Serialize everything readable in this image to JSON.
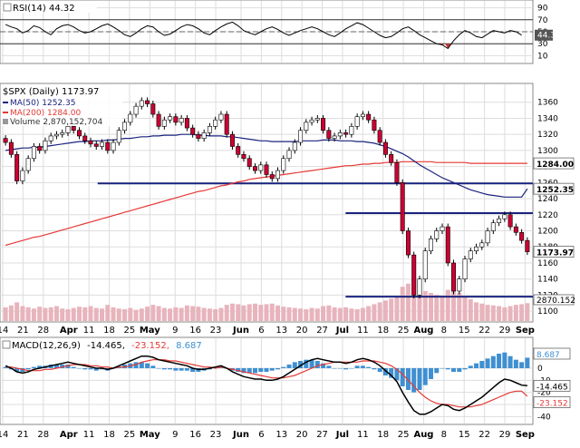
{
  "chart_data": {
    "type": "line",
    "symbol": "$SPX",
    "colors": {
      "up": "#ffffff",
      "down": "#cc0033",
      "ma50": "#1a237e",
      "ma200": "#e53935",
      "volume": "#e8b4bc",
      "macd": "#000000",
      "signal": "#e53935",
      "hist": "#3f8fd1",
      "hline": "#1a237e",
      "grid": "#dddddd",
      "rsi": "#000000",
      "rsi_fill": "#cc3333"
    },
    "rsi_panel": {
      "legend": "RSI(14) 44.32",
      "ylim": [
        0,
        100
      ],
      "ticks": [
        "90",
        "70",
        "50",
        "30",
        "10"
      ],
      "tick_values": [
        90,
        70,
        50,
        30,
        10
      ],
      "last_label": "44.32",
      "last_value": 44.32,
      "levels": [
        70,
        30
      ],
      "mid": 50,
      "values": [
        62,
        58,
        55,
        48,
        52,
        60,
        57,
        50,
        45,
        55,
        60,
        62,
        58,
        52,
        48,
        50,
        55,
        60,
        63,
        58,
        52,
        45,
        42,
        48,
        55,
        60,
        58,
        50,
        44,
        46,
        52,
        58,
        62,
        60,
        55,
        48,
        45,
        52,
        58,
        63,
        66,
        60,
        52,
        48,
        45,
        50,
        55,
        58,
        54,
        48,
        44,
        48,
        52,
        55,
        58,
        55,
        50,
        45,
        42,
        48,
        55,
        60,
        65,
        62,
        56,
        50,
        44,
        40,
        42,
        48,
        55,
        58,
        52,
        45,
        40,
        35,
        30,
        28,
        22,
        35,
        45,
        52,
        48,
        42,
        40,
        46,
        52,
        50,
        48,
        52,
        50,
        44.32
      ]
    },
    "price_panel": {
      "legend_title": "$SPX (Daily) 1173.97",
      "legend_ma50": "MA(50) 1252.35",
      "legend_ma200": "MA(200) 1284.00",
      "legend_volume": "Volume 2,870,152,704",
      "ylim": [
        1090,
        1380
      ],
      "ticks": [
        "1360",
        "1340",
        "1320",
        "1300",
        "1280",
        "1260",
        "1240",
        "1220",
        "1200",
        "1180",
        "1160",
        "1140",
        "1120",
        "1100"
      ],
      "tick_values": [
        1360,
        1340,
        1320,
        1300,
        1280,
        1260,
        1240,
        1220,
        1200,
        1180,
        1160,
        1140,
        1120,
        1100
      ],
      "price_label": "1173.97",
      "price_value": 1173.97,
      "ma50_label": "1252.35",
      "ma50_value": 1252.35,
      "ma200_label": "1284.00",
      "ma200_value": 1284.0,
      "volume_label": "2870.152",
      "volume_value": 2870.152,
      "hlines": [
        {
          "value": 1259,
          "x_from": 18,
          "x_to": 92
        },
        {
          "value": 1222,
          "x_from": 65,
          "x_to": 92
        },
        {
          "value": 1118,
          "x_from": 65,
          "x_to": 92
        }
      ],
      "closes": [
        1310,
        1295,
        1262,
        1275,
        1290,
        1305,
        1300,
        1312,
        1318,
        1320,
        1322,
        1330,
        1325,
        1318,
        1312,
        1308,
        1305,
        1310,
        1300,
        1310,
        1325,
        1335,
        1345,
        1355,
        1362,
        1358,
        1345,
        1330,
        1338,
        1342,
        1335,
        1340,
        1328,
        1320,
        1315,
        1322,
        1330,
        1338,
        1345,
        1320,
        1305,
        1295,
        1290,
        1280,
        1275,
        1282,
        1270,
        1265,
        1275,
        1290,
        1300,
        1310,
        1325,
        1335,
        1338,
        1340,
        1325,
        1315,
        1318,
        1322,
        1320,
        1330,
        1342,
        1345,
        1338,
        1325,
        1310,
        1295,
        1285,
        1260,
        1200,
        1170,
        1120,
        1140,
        1175,
        1190,
        1200,
        1205,
        1160,
        1125,
        1140,
        1165,
        1175,
        1180,
        1185,
        1200,
        1210,
        1215,
        1220,
        1205,
        1198,
        1188,
        1173.97
      ],
      "ma50": [
        1300,
        1301,
        1302,
        1303,
        1303,
        1304,
        1304,
        1305,
        1306,
        1307,
        1308,
        1309,
        1310,
        1311,
        1311,
        1312,
        1312,
        1312,
        1313,
        1313,
        1314,
        1315,
        1315,
        1316,
        1317,
        1317,
        1318,
        1318,
        1319,
        1319,
        1319,
        1320,
        1320,
        1320,
        1319,
        1319,
        1318,
        1318,
        1318,
        1317,
        1317,
        1316,
        1315,
        1314,
        1313,
        1312,
        1312,
        1311,
        1311,
        1311,
        1311,
        1311,
        1312,
        1312,
        1312,
        1312,
        1313,
        1313,
        1313,
        1312,
        1312,
        1312,
        1311,
        1311,
        1310,
        1309,
        1307,
        1305,
        1302,
        1299,
        1296,
        1292,
        1287,
        1282,
        1278,
        1274,
        1270,
        1266,
        1263,
        1260,
        1257,
        1254,
        1251,
        1249,
        1247,
        1245,
        1244,
        1243,
        1242,
        1242,
        1242,
        1242,
        1252.35
      ],
      "ma200": [
        1182,
        1184,
        1186,
        1188,
        1190,
        1192,
        1193,
        1195,
        1197,
        1199,
        1201,
        1203,
        1205,
        1207,
        1209,
        1211,
        1213,
        1215,
        1217,
        1219,
        1221,
        1223,
        1225,
        1227,
        1229,
        1231,
        1233,
        1235,
        1237,
        1239,
        1241,
        1243,
        1245,
        1247,
        1249,
        1250,
        1252,
        1254,
        1256,
        1257,
        1259,
        1261,
        1262,
        1264,
        1265,
        1266,
        1267,
        1268,
        1269,
        1270,
        1271,
        1272,
        1273,
        1274,
        1275,
        1276,
        1277,
        1278,
        1279,
        1280,
        1281,
        1281,
        1282,
        1283,
        1283,
        1284,
        1284,
        1285,
        1285,
        1285,
        1286,
        1286,
        1286,
        1286,
        1286,
        1286,
        1285,
        1285,
        1285,
        1285,
        1285,
        1285,
        1284,
        1284,
        1284,
        1284,
        1284,
        1284,
        1284,
        1284,
        1284,
        1284,
        1284.0
      ],
      "volume": [
        22,
        25,
        30,
        24,
        22,
        20,
        23,
        21,
        22,
        24,
        20,
        19,
        21,
        23,
        22,
        24,
        21,
        20,
        26,
        22,
        20,
        19,
        21,
        18,
        20,
        23,
        26,
        24,
        21,
        20,
        22,
        21,
        25,
        24,
        23,
        21,
        20,
        19,
        21,
        26,
        28,
        27,
        25,
        27,
        28,
        26,
        27,
        28,
        25,
        23,
        22,
        21,
        20,
        19,
        21,
        20,
        24,
        25,
        22,
        21,
        22,
        20,
        19,
        21,
        24,
        27,
        30,
        33,
        36,
        40,
        55,
        60,
        70,
        58,
        48,
        45,
        42,
        40,
        50,
        55,
        45,
        40,
        35,
        30,
        28,
        26,
        25,
        24,
        22,
        24,
        26,
        27,
        28.7
      ],
      "volume_max": 80
    },
    "macd_panel": {
      "legend_prefix": "MACD(12,26,9)",
      "legend_macd": "-14.465,",
      "legend_signal": "-23.152,",
      "legend_hist": "8.687",
      "ylim": [
        -45,
        15
      ],
      "ticks": [
        "0",
        "-10",
        "-20",
        "-30",
        "-40"
      ],
      "tick_values": [
        0,
        -10,
        -20,
        -30,
        -40
      ],
      "hist_label": "8.687",
      "hist_value": 8.687,
      "macd_label": "-14.465",
      "macd_value": -14.465,
      "signal_label": "-23.152",
      "signal_value": -23.152,
      "macd": [
        2,
        0,
        -3,
        -4,
        -3,
        -1,
        0,
        1,
        2,
        3,
        4,
        5,
        4,
        3,
        2,
        1,
        0,
        0,
        -1,
        0,
        2,
        4,
        6,
        8,
        10,
        10,
        9,
        7,
        6,
        5,
        4,
        3,
        2,
        0,
        -1,
        -1,
        0,
        1,
        2,
        0,
        -3,
        -5,
        -7,
        -8,
        -9,
        -9,
        -10,
        -10,
        -9,
        -7,
        -4,
        -1,
        2,
        5,
        7,
        8,
        7,
        6,
        5,
        5,
        4,
        5,
        7,
        8,
        7,
        5,
        2,
        -2,
        -6,
        -11,
        -20,
        -28,
        -35,
        -38,
        -38,
        -36,
        -33,
        -30,
        -31,
        -34,
        -35,
        -33,
        -30,
        -27,
        -24,
        -20,
        -16,
        -12,
        -9,
        -10,
        -12,
        -14,
        -14.465
      ],
      "signal": [
        1,
        1,
        0,
        -1,
        -2,
        -2,
        -2,
        -1,
        -1,
        0,
        1,
        2,
        3,
        3,
        3,
        2,
        2,
        1,
        1,
        0,
        1,
        1,
        2,
        3,
        5,
        6,
        7,
        7,
        7,
        6,
        6,
        5,
        4,
        3,
        2,
        1,
        1,
        0,
        1,
        0,
        -1,
        -2,
        -3,
        -4,
        -5,
        -6,
        -7,
        -8,
        -8,
        -8,
        -7,
        -6,
        -4,
        -2,
        0,
        2,
        3,
        4,
        5,
        5,
        5,
        5,
        5,
        6,
        6,
        6,
        5,
        4,
        2,
        -1,
        -5,
        -10,
        -15,
        -20,
        -24,
        -27,
        -29,
        -30,
        -30,
        -31,
        -32,
        -32,
        -32,
        -31,
        -30,
        -28,
        -26,
        -24,
        -22,
        -20,
        -19,
        -19,
        -23.152
      ],
      "hist": [
        1,
        -1,
        -3,
        -3,
        -1,
        1,
        2,
        2,
        3,
        3,
        3,
        3,
        1,
        0,
        -1,
        -1,
        -2,
        -1,
        -2,
        0,
        1,
        3,
        4,
        5,
        5,
        4,
        2,
        0,
        -1,
        -1,
        -2,
        -2,
        -2,
        -3,
        -3,
        -2,
        -1,
        1,
        1,
        0,
        -2,
        -3,
        -4,
        -4,
        -4,
        -3,
        -3,
        -2,
        -1,
        1,
        3,
        5,
        6,
        7,
        7,
        6,
        4,
        2,
        0,
        0,
        -1,
        0,
        2,
        2,
        1,
        -1,
        -3,
        -6,
        -8,
        -10,
        -15,
        -18,
        -20,
        -18,
        -14,
        -9,
        -4,
        0,
        -1,
        -3,
        -3,
        -1,
        2,
        4,
        6,
        8,
        10,
        12,
        13,
        10,
        7,
        5,
        8.687
      ]
    },
    "x_axis": {
      "labels": [
        "14",
        "21",
        "28",
        "Apr",
        "11",
        "18",
        "25",
        "May",
        "9",
        "16",
        "23",
        "Jun",
        "6",
        "13",
        "20",
        "27",
        "Jul",
        "11",
        "18",
        "25",
        "Aug",
        "8",
        "15",
        "22",
        "29",
        "Sep"
      ],
      "positions": [
        0,
        2,
        4,
        6.5,
        8.5,
        10.5,
        12.5,
        14.5,
        17,
        19,
        21,
        23.5,
        25.5,
        27.5,
        29.5,
        31.5,
        33.5,
        35.5,
        37.5,
        39.5,
        41.5,
        43.5,
        45.5,
        47.5,
        49.5,
        51.5
      ],
      "bold": [
        "Apr",
        "May",
        "Jun",
        "Jul",
        "Aug",
        "Sep"
      ],
      "span": 52
    }
  }
}
